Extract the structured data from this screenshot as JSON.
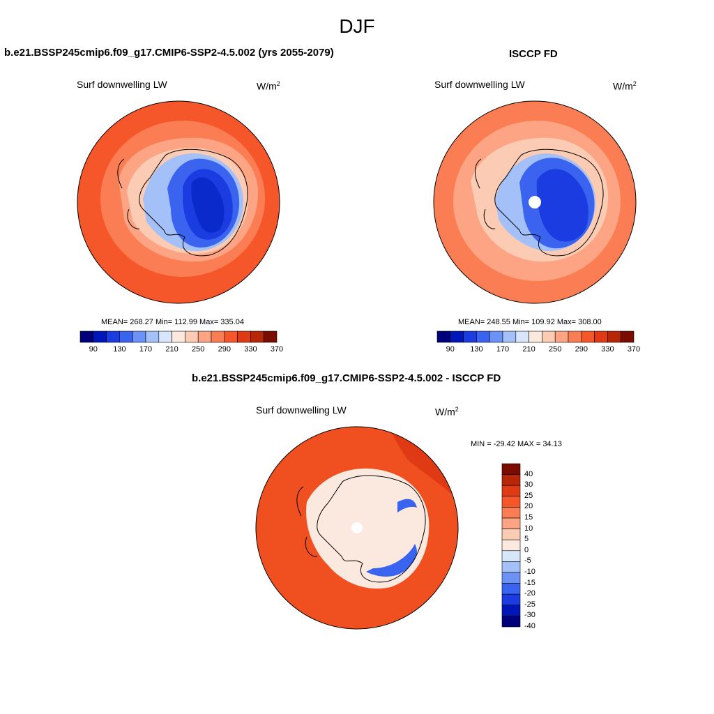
{
  "main_title": "DJF",
  "panels": [
    {
      "title": "b.e21.BSSP245cmip6.f09_g17.CMIP6-SSP2-4.5.002 (yrs 2055-2079)",
      "variable": "Surf downwelling LW",
      "units_base": "W/m",
      "units_exp": "2",
      "stats": "MEAN= 268.27  Min= 112.99  Max= 335.04"
    },
    {
      "title": "ISCCP FD",
      "variable": "Surf downwelling LW",
      "units_base": "W/m",
      "units_exp": "2",
      "stats": "MEAN= 248.55  Min= 109.92  Max= 308.00"
    },
    {
      "title": "b.e21.BSSP245cmip6.f09_g17.CMIP6-SSP2-4.5.002 - ISCCP FD",
      "variable": "Surf downwelling LW",
      "units_base": "W/m",
      "units_exp": "2",
      "stats": "MIN = -29.42 MAX =  34.13"
    }
  ],
  "colorbar_abs": {
    "colors": [
      "#00007a",
      "#0016b8",
      "#1a3ce0",
      "#3a64f0",
      "#6c92f5",
      "#a3c0f8",
      "#d8e6fb",
      "#fbe9df",
      "#fccbb3",
      "#fca483",
      "#fb7d53",
      "#f5562a",
      "#e03a14",
      "#b82608",
      "#7a0c00"
    ],
    "tick_labels": [
      "90",
      "130",
      "170",
      "210",
      "250",
      "290",
      "330",
      "370"
    ]
  },
  "colorbar_diff": {
    "colors": [
      "#7a0c00",
      "#b82608",
      "#e03a14",
      "#f5562a",
      "#fb7d53",
      "#fca483",
      "#fccbb3",
      "#fbe9df",
      "#d8e6fb",
      "#a3c0f8",
      "#6c92f5",
      "#3a64f0",
      "#1a3ce0",
      "#0016b8",
      "#00007a"
    ],
    "tick_labels": [
      "40",
      "30",
      "25",
      "20",
      "15",
      "10",
      "5",
      "0",
      "-5",
      "-10",
      "-15",
      "-20",
      "-25",
      "-30",
      "-40"
    ]
  },
  "map_colors": {
    "ocean_outer": "#f5562a",
    "ocean_mid": "#fb7d53",
    "ocean_inner": "#fca483",
    "coast_band": "#fccbb3",
    "ice_light": "#a3c0f8",
    "ice_mid": "#3a64f0",
    "ice_dark": "#1a3ce0",
    "ice_core": "#0a2acc",
    "diff_red": "#f05020",
    "diff_dark": "#e03a14",
    "diff_light": "#fbe9df",
    "diff_blue": "#3a64f0"
  }
}
